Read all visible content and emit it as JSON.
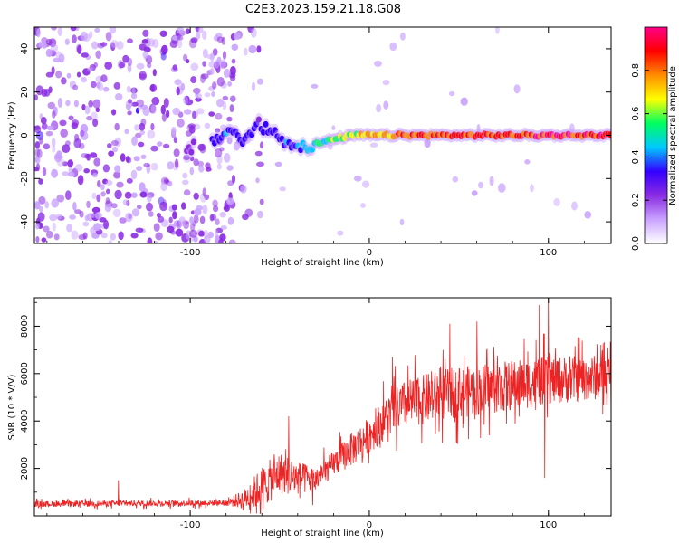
{
  "title": "C2E3.2023.159.21.18.G08",
  "chart_data": [
    {
      "type": "heatmap",
      "xlabel": "Height of straight line (km)",
      "ylabel": "Frequency (Hz)",
      "xlim": [
        -187,
        135
      ],
      "ylim": [
        -50,
        50
      ],
      "x_ticks": [
        -100,
        0,
        100
      ],
      "x_tick_labels": [
        "-100",
        "0",
        "100"
      ],
      "y_ticks": [
        -40,
        -20,
        0,
        20,
        40
      ],
      "y_tick_labels": [
        "-40",
        "-20",
        "0",
        "20",
        "40"
      ],
      "colorbar": {
        "label": "Normalized spectral amplitude",
        "range": [
          0,
          1
        ],
        "ticks": [
          0.0,
          0.2,
          0.4,
          0.6,
          0.8
        ],
        "tick_labels": [
          "0.0",
          "0.2",
          "0.4",
          "0.6",
          "0.8"
        ],
        "colors": [
          "#ffffff",
          "#c9a3ff",
          "#8a2be2",
          "#3300ff",
          "#00c8ff",
          "#00ff60",
          "#ffff00",
          "#ff8c00",
          "#ff0000",
          "#ff0088"
        ]
      },
      "signal_track": [
        {
          "x": -100,
          "y": -6,
          "amp": 0.25
        },
        {
          "x": -85,
          "y": -2,
          "amp": 0.35
        },
        {
          "x": -78,
          "y": 3,
          "amp": 0.4
        },
        {
          "x": -70,
          "y": -3,
          "amp": 0.35
        },
        {
          "x": -62,
          "y": 5,
          "amp": 0.3
        },
        {
          "x": -55,
          "y": 2,
          "amp": 0.35
        },
        {
          "x": -45,
          "y": -4,
          "amp": 0.4
        },
        {
          "x": -35,
          "y": -5,
          "amp": 0.45
        },
        {
          "x": -20,
          "y": -2,
          "amp": 0.6
        },
        {
          "x": -10,
          "y": 0,
          "amp": 0.65
        },
        {
          "x": 0,
          "y": 0,
          "amp": 0.75
        },
        {
          "x": 20,
          "y": 0,
          "amp": 0.85
        },
        {
          "x": 50,
          "y": 0,
          "amp": 0.9
        },
        {
          "x": 80,
          "y": 0,
          "amp": 0.9
        },
        {
          "x": 110,
          "y": 0,
          "amp": 0.95
        },
        {
          "x": 135,
          "y": 0,
          "amp": 0.95
        }
      ]
    },
    {
      "type": "line",
      "xlabel": "Height of straight line (km)",
      "ylabel": "SNR (10 * V/V)",
      "xlim": [
        -187,
        135
      ],
      "ylim": [
        0,
        9200
      ],
      "x_ticks": [
        -100,
        0,
        100
      ],
      "x_tick_labels": [
        "-100",
        "0",
        "100"
      ],
      "y_ticks": [
        2000,
        4000,
        6000,
        8000
      ],
      "y_tick_labels": [
        "2000",
        "4000",
        "6000",
        "8000"
      ],
      "series": [
        {
          "color": "#ee2222",
          "trend_x": [
            -187,
            -80,
            -70,
            -60,
            -50,
            -40,
            -30,
            -20,
            -10,
            0,
            10,
            20,
            40,
            60,
            80,
            100,
            120,
            135
          ],
          "trend_y": [
            500,
            550,
            700,
            1200,
            1800,
            1600,
            1500,
            2200,
            2800,
            3400,
            4200,
            4700,
            5100,
            5300,
            5500,
            5700,
            5800,
            5900
          ],
          "noise": [
            200,
            200,
            700,
            1500,
            1500,
            1200,
            900,
            900,
            1200,
            1300,
            1500,
            1700,
            1800,
            1800,
            1800,
            1700,
            1600,
            1600
          ],
          "peaks": [
            {
              "x": 100,
              "y": 9200
            },
            {
              "x": 95,
              "y": 8900
            },
            {
              "x": 60,
              "y": 8200
            },
            {
              "x": 45,
              "y": 8100
            },
            {
              "x": 13,
              "y": 6700
            },
            {
              "x": -45,
              "y": 4200
            },
            {
              "x": -140,
              "y": 1500
            },
            {
              "x": 98,
              "y": 1600
            }
          ]
        }
      ]
    }
  ]
}
